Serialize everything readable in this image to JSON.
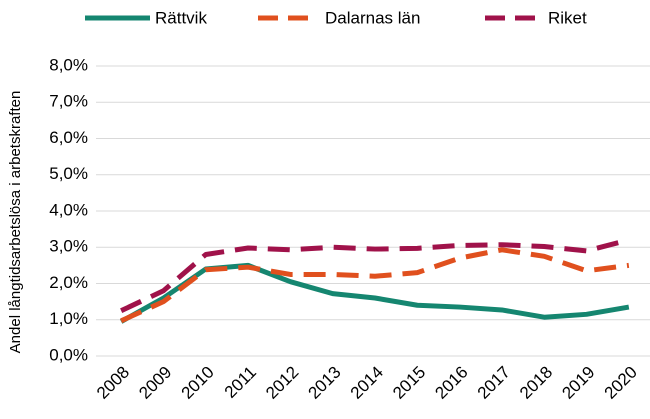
{
  "chart_data": {
    "type": "line",
    "y_label": "Andel långtidsarbetslösa i arbetskraften",
    "categories": [
      "2008",
      "2009",
      "2010",
      "2011",
      "2012",
      "2013",
      "2014",
      "2015",
      "2016",
      "2017",
      "2018",
      "2019",
      "2020"
    ],
    "series": [
      {
        "name": "Rättvik",
        "color": "#158670",
        "dashed": false,
        "values": [
          0.95,
          1.6,
          2.4,
          2.5,
          2.05,
          1.72,
          1.6,
          1.4,
          1.35,
          1.27,
          1.07,
          1.15,
          1.35
        ]
      },
      {
        "name": "Dalarnas län",
        "color": "#e0501e",
        "dashed": true,
        "values": [
          0.97,
          1.5,
          2.38,
          2.45,
          2.25,
          2.25,
          2.2,
          2.3,
          2.7,
          2.93,
          2.75,
          2.35,
          2.5
        ]
      },
      {
        "name": "Riket",
        "color": "#a0124a",
        "dashed": true,
        "values": [
          1.25,
          1.8,
          2.8,
          2.98,
          2.93,
          3.0,
          2.95,
          2.97,
          3.05,
          3.07,
          3.02,
          2.9,
          3.2
        ]
      }
    ],
    "ylim": [
      0,
      8
    ],
    "yticks": [
      {
        "value": 0,
        "label": "0,0%"
      },
      {
        "value": 1,
        "label": "1,0%"
      },
      {
        "value": 2,
        "label": "2,0%"
      },
      {
        "value": 3,
        "label": "3,0%"
      },
      {
        "value": 4,
        "label": "4,0%"
      },
      {
        "value": 5,
        "label": "5,0%"
      },
      {
        "value": 6,
        "label": "6,0%"
      },
      {
        "value": 7,
        "label": "7,0%"
      },
      {
        "value": 8,
        "label": "8,0%"
      }
    ],
    "grid": true,
    "legend": "top"
  }
}
